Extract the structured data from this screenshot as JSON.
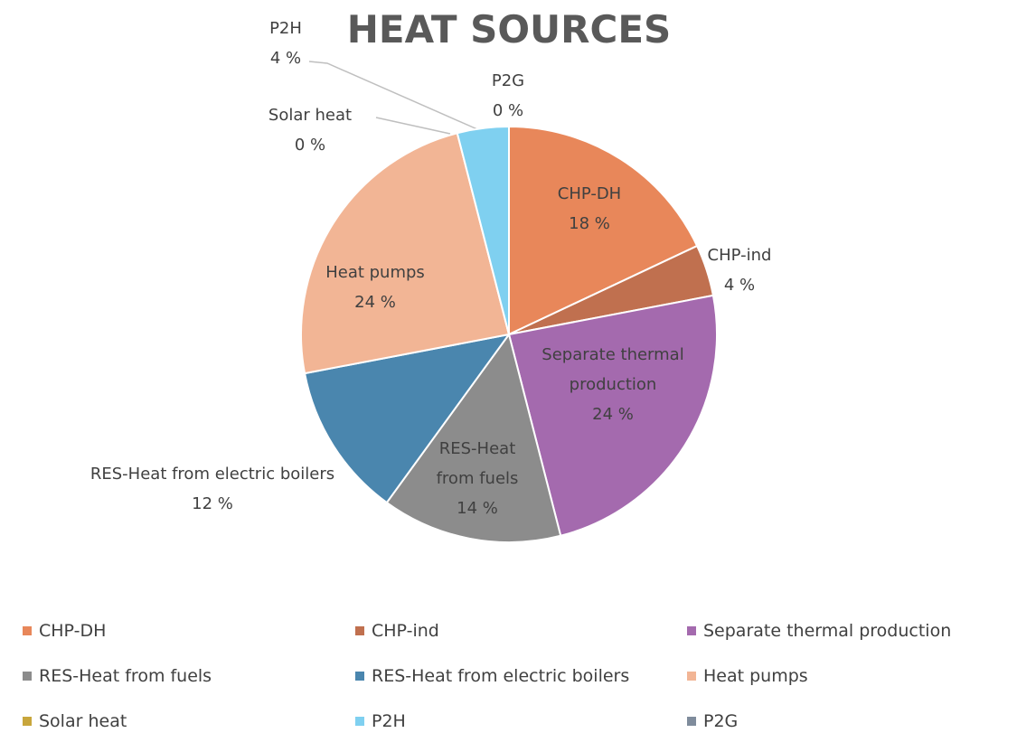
{
  "chart_data": {
    "type": "pie",
    "title": "HEAT SOURCES",
    "categories": [
      "CHP-DH",
      "CHP-ind",
      "Separate thermal production",
      "RES-Heat from fuels",
      "RES-Heat from electric boilers",
      "Heat pumps",
      "Solar heat",
      "P2H",
      "P2G"
    ],
    "values": [
      18,
      4,
      24,
      14,
      12,
      24,
      0,
      4,
      0
    ],
    "value_labels": [
      "18 %",
      "4 %",
      "24 %",
      "14 %",
      "12 %",
      "24 %",
      "0 %",
      "4 %",
      "0 %"
    ],
    "colors": [
      "#e8875a",
      "#c0704f",
      "#a46aae",
      "#8c8c8c",
      "#4a86ae",
      "#f2b595",
      "#c8a63c",
      "#7fd0f0",
      "#7f8c9c"
    ],
    "legend": "bottom"
  }
}
